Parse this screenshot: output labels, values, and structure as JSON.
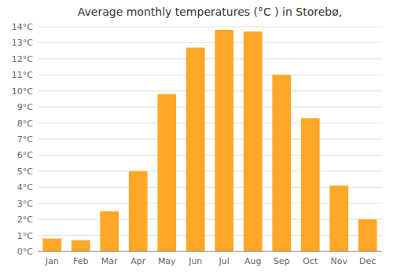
{
  "chart_data": {
    "type": "bar",
    "title": "Average monthly temperatures (°C ) in Storebø,",
    "categories": [
      "Jan",
      "Feb",
      "Mar",
      "Apr",
      "May",
      "Jun",
      "Jul",
      "Aug",
      "Sep",
      "Oct",
      "Nov",
      "Dec"
    ],
    "values": [
      0.8,
      0.7,
      2.5,
      5.0,
      9.8,
      12.7,
      13.8,
      13.7,
      11.0,
      8.3,
      4.1,
      2.0
    ],
    "color": "#FFA726",
    "ylim": [
      0,
      14
    ],
    "yticks": [
      {
        "value": 0,
        "label": "0°C"
      },
      {
        "value": 1,
        "label": "1°C"
      },
      {
        "value": 2,
        "label": "2°C"
      },
      {
        "value": 3,
        "label": "3°C"
      },
      {
        "value": 4,
        "label": "4°C"
      },
      {
        "value": 5,
        "label": "5°C"
      },
      {
        "value": 6,
        "label": "6°C"
      },
      {
        "value": 7,
        "label": "7°C"
      },
      {
        "value": 8,
        "label": "8°C"
      },
      {
        "value": 9,
        "label": "9°C"
      },
      {
        "value": 10,
        "label": "10°C"
      },
      {
        "value": 11,
        "label": "11°C"
      },
      {
        "value": 12,
        "label": "12°C"
      },
      {
        "value": 13,
        "label": "13°C"
      },
      {
        "value": 14,
        "label": "14°C"
      }
    ],
    "grid": true
  }
}
